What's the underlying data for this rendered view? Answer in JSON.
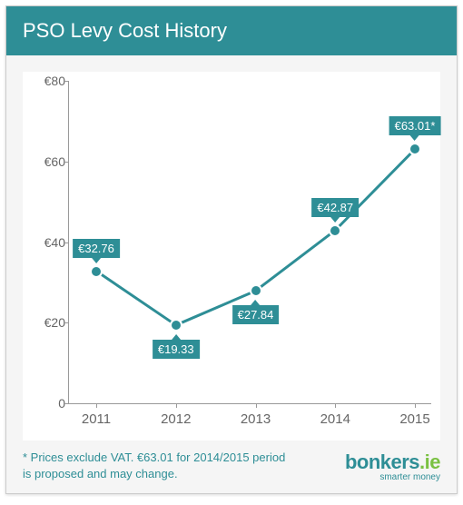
{
  "header": {
    "title": "PSO Levy Cost History"
  },
  "chart": {
    "type": "line",
    "currency": "€",
    "years": [
      "2011",
      "2012",
      "2013",
      "2014",
      "2015"
    ],
    "values": [
      32.76,
      19.33,
      27.84,
      42.87,
      63.01
    ],
    "value_labels": [
      "€32.76",
      "€19.33",
      "€27.84",
      "€42.87",
      "€63.01*"
    ],
    "label_position": [
      "above",
      "below",
      "below",
      "above",
      "above"
    ],
    "ylim": [
      0,
      80
    ],
    "ytick_step": 20,
    "yticks": [
      "0",
      "€20",
      "€40",
      "€60",
      "€80"
    ],
    "line_color": "#2e8e96",
    "line_width": 3,
    "marker_size": 14,
    "marker_color": "#2e8e96",
    "marker_border": "#ffffff",
    "tag_bg": "#2e8e96",
    "tag_fg": "#ffffff",
    "axis_color": "#999999",
    "tick_label_color": "#666666",
    "tick_fontsize": 14,
    "background_color": "#ffffff",
    "container_bg": "#f5f5f5"
  },
  "footnote": "* Prices exclude VAT. €63.01 for 2014/2015 period is proposed and may change.",
  "brand": {
    "name": "bonkers",
    "tld": ".ie",
    "tagline": "smarter money",
    "main_color": "#2e8e96",
    "dot_color": "#7ac142"
  }
}
